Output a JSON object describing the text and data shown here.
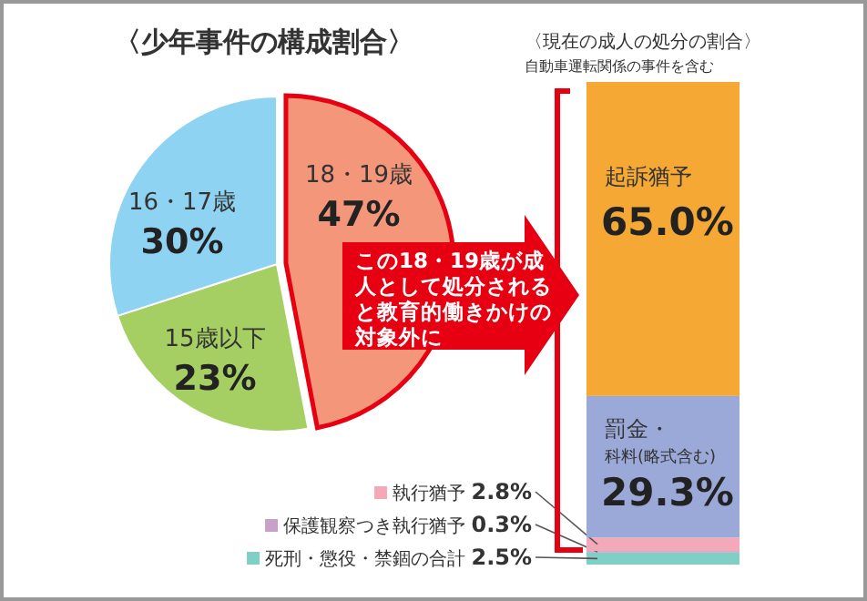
{
  "chart_data": [
    {
      "type": "pie",
      "title": "〈少年事件の構成割合〉",
      "categories": [
        "18・19歳",
        "15歳以下",
        "16・17歳"
      ],
      "values": [
        47,
        23,
        30
      ],
      "colors": [
        "#f4967a",
        "#a5cf62",
        "#8fd3f2"
      ],
      "value_labels": [
        "47%",
        "23%",
        "30%"
      ],
      "annotations": [
        "この18・19歳が成人として処分されると教育的働きかけの対象外に"
      ]
    },
    {
      "type": "bar",
      "stacked": true,
      "legend": "bottom left",
      "title": "〈現在の成人の処分の割合〉",
      "subtitle": "自動車運転関係の事件を含む",
      "categories": [
        null
      ],
      "series": [
        {
          "name": "死刑・懲役・禁錮の合計",
          "color": "#7fcfc4",
          "values": [
            2.5
          ],
          "value_labels": [
            "2.5%"
          ]
        },
        {
          "name": "保護観察つき執行猶予",
          "color": "#c9a0c8",
          "values": [
            0.3
          ],
          "value_labels": [
            "0.3%"
          ]
        },
        {
          "name": "執行猶予",
          "color": "#f4a9b8",
          "values": [
            2.8
          ],
          "value_labels": [
            "2.8%"
          ]
        },
        {
          "name": "罰金・科料(略式含む)",
          "color": "#9aa9d8",
          "values": [
            29.3
          ],
          "value_labels": [
            "29.3%"
          ]
        },
        {
          "name": "起訴猶予",
          "color": "#f5a833",
          "values": [
            65.0
          ],
          "value_labels": [
            "65.0%"
          ]
        }
      ]
    }
  ]
}
